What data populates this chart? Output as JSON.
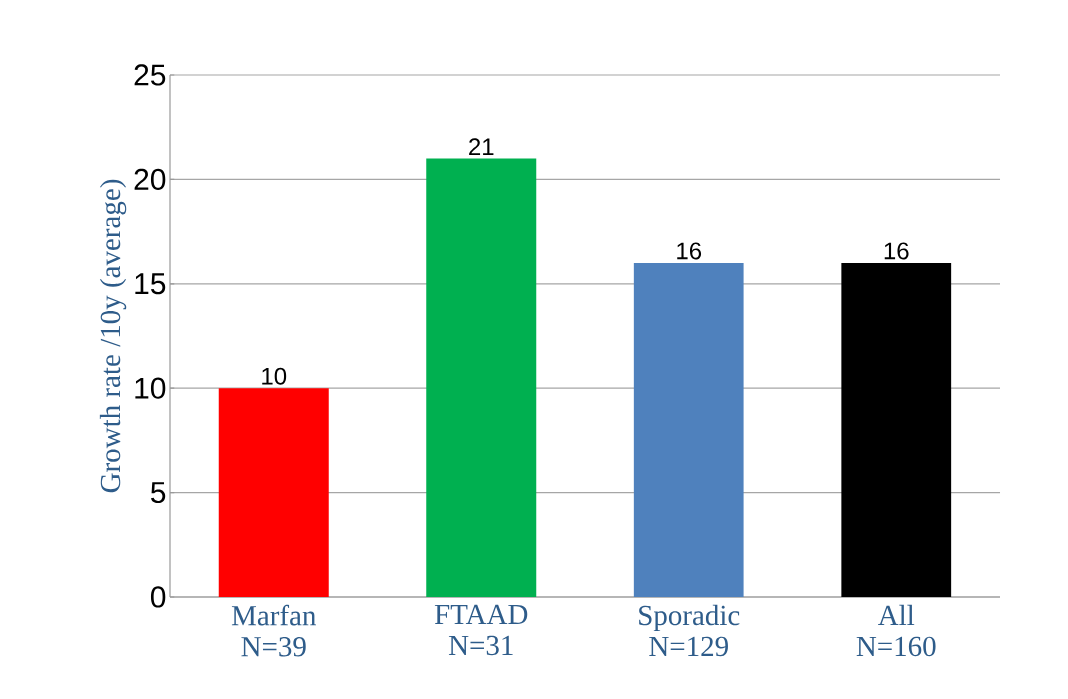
{
  "chart_data": {
    "type": "bar",
    "ylabel": "Growth rate /10y (average)",
    "categories": [
      "Marfan N=39",
      "FTAAD N=31",
      "Sporadic N=129",
      "All N=160"
    ],
    "values": [
      10,
      21,
      16,
      16
    ],
    "colors": [
      "#ff0000",
      "#00b050",
      "#4f81bd",
      "#000000"
    ],
    "ylim": [
      0,
      25
    ],
    "yticks": [
      0,
      5,
      10,
      15,
      20,
      25
    ],
    "grid": "y",
    "data_labels": true
  }
}
